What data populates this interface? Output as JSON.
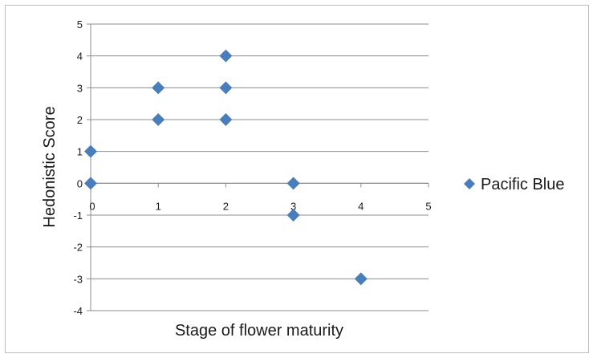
{
  "chart_data": {
    "type": "scatter",
    "title": "",
    "xlabel": "Stage of flower maturity",
    "ylabel": "Hedonistic Score",
    "xlim": [
      0,
      5
    ],
    "ylim": [
      -4,
      5
    ],
    "x_ticks": [
      0,
      1,
      2,
      3,
      4,
      5
    ],
    "y_ticks": [
      5,
      4,
      3,
      2,
      1,
      0,
      -1,
      -2,
      -3,
      -4
    ],
    "grid": "horizontal",
    "legend_position": "right",
    "marker": "diamond",
    "series": [
      {
        "name": "Pacific Blue",
        "color": "#4a7ebb",
        "points": [
          {
            "x": 0,
            "y": 1
          },
          {
            "x": 0,
            "y": 0
          },
          {
            "x": 1,
            "y": 3
          },
          {
            "x": 1,
            "y": 2
          },
          {
            "x": 2,
            "y": 4
          },
          {
            "x": 2,
            "y": 3
          },
          {
            "x": 2,
            "y": 2
          },
          {
            "x": 3,
            "y": 0
          },
          {
            "x": 3,
            "y": -1
          },
          {
            "x": 4,
            "y": -3
          }
        ]
      }
    ]
  }
}
